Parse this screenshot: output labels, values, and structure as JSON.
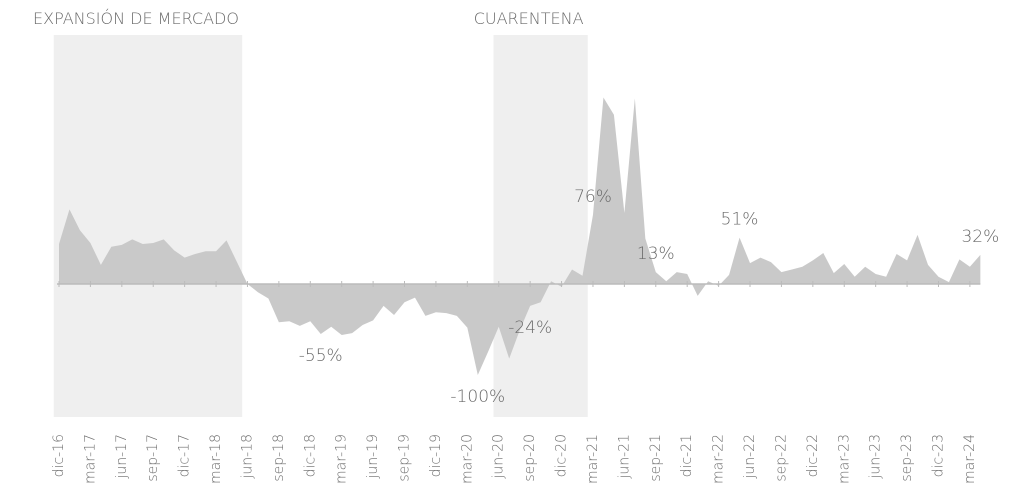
{
  "chart_data": {
    "type": "area",
    "color": "#c9c9c9",
    "categories": [
      "dic-16",
      null,
      null,
      "mar-17",
      null,
      null,
      "jun-17",
      null,
      null,
      "sep-17",
      null,
      null,
      "dic-17",
      null,
      null,
      "mar-18",
      null,
      null,
      "jun-18",
      null,
      null,
      "sep-18",
      null,
      null,
      "dic-18",
      null,
      null,
      "mar-19",
      null,
      null,
      "jun-19",
      null,
      null,
      "sep-19",
      null,
      null,
      "dic-19",
      null,
      null,
      "mar-20",
      null,
      null,
      "jun-20",
      null,
      null,
      "sep-20",
      null,
      null,
      "dic-20",
      null,
      null,
      "mar-21",
      null,
      null,
      "jun-21",
      null,
      null,
      "sep-21",
      null,
      null,
      "dic-21",
      null,
      null,
      "mar-22",
      null,
      null,
      "jun-22",
      null,
      null,
      "sep-22",
      null,
      null,
      "dic-22",
      null,
      null,
      "mar-23",
      null,
      null,
      "jun-23",
      null,
      null,
      "sep-23",
      null,
      null,
      "dic-23",
      null,
      null,
      "mar-24",
      null
    ],
    "values": [
      44,
      82,
      59,
      45,
      21,
      41,
      43,
      49,
      44,
      45,
      49,
      37,
      29,
      33,
      36,
      36,
      48,
      24,
      0,
      -9,
      -16,
      -42,
      -41,
      -46,
      -41,
      -55,
      -47,
      -56,
      -54,
      -45,
      -40,
      -24,
      -34,
      -20,
      -15,
      -35,
      -31,
      -32,
      -35,
      -48,
      -100,
      -74,
      -47,
      -82,
      -51,
      -24,
      -20,
      3,
      -3,
      16,
      9,
      76,
      205,
      186,
      78,
      204,
      50,
      13,
      3,
      13,
      11,
      -13,
      3,
      -2,
      10,
      51,
      23,
      29,
      24,
      13,
      16,
      19,
      26,
      34,
      12,
      22,
      8,
      19,
      11,
      8,
      33,
      26,
      54,
      21,
      8,
      2,
      27,
      19,
      32
    ],
    "value_labels": [
      null,
      null,
      null,
      null,
      null,
      null,
      null,
      null,
      null,
      null,
      null,
      null,
      null,
      null,
      null,
      null,
      null,
      null,
      null,
      null,
      null,
      null,
      null,
      null,
      null,
      "-55%",
      null,
      null,
      null,
      null,
      null,
      null,
      null,
      null,
      null,
      null,
      null,
      null,
      null,
      null,
      "-100%",
      null,
      null,
      null,
      null,
      "-24%",
      null,
      null,
      null,
      null,
      null,
      "76%",
      null,
      null,
      null,
      null,
      null,
      "13%",
      null,
      null,
      null,
      null,
      null,
      null,
      null,
      "51%",
      null,
      null,
      null,
      null,
      null,
      null,
      null,
      null,
      null,
      null,
      null,
      null,
      null,
      null,
      null,
      null,
      null,
      null,
      null,
      null,
      null,
      null,
      "32%"
    ],
    "regions": [
      {
        "label": "EXPANSIÓN DE MERCADO",
        "start": "dic-16",
        "end": "jun-18"
      },
      {
        "label": "CUARENTENA",
        "start": "jun-20",
        "end": "mar-21"
      }
    ]
  }
}
